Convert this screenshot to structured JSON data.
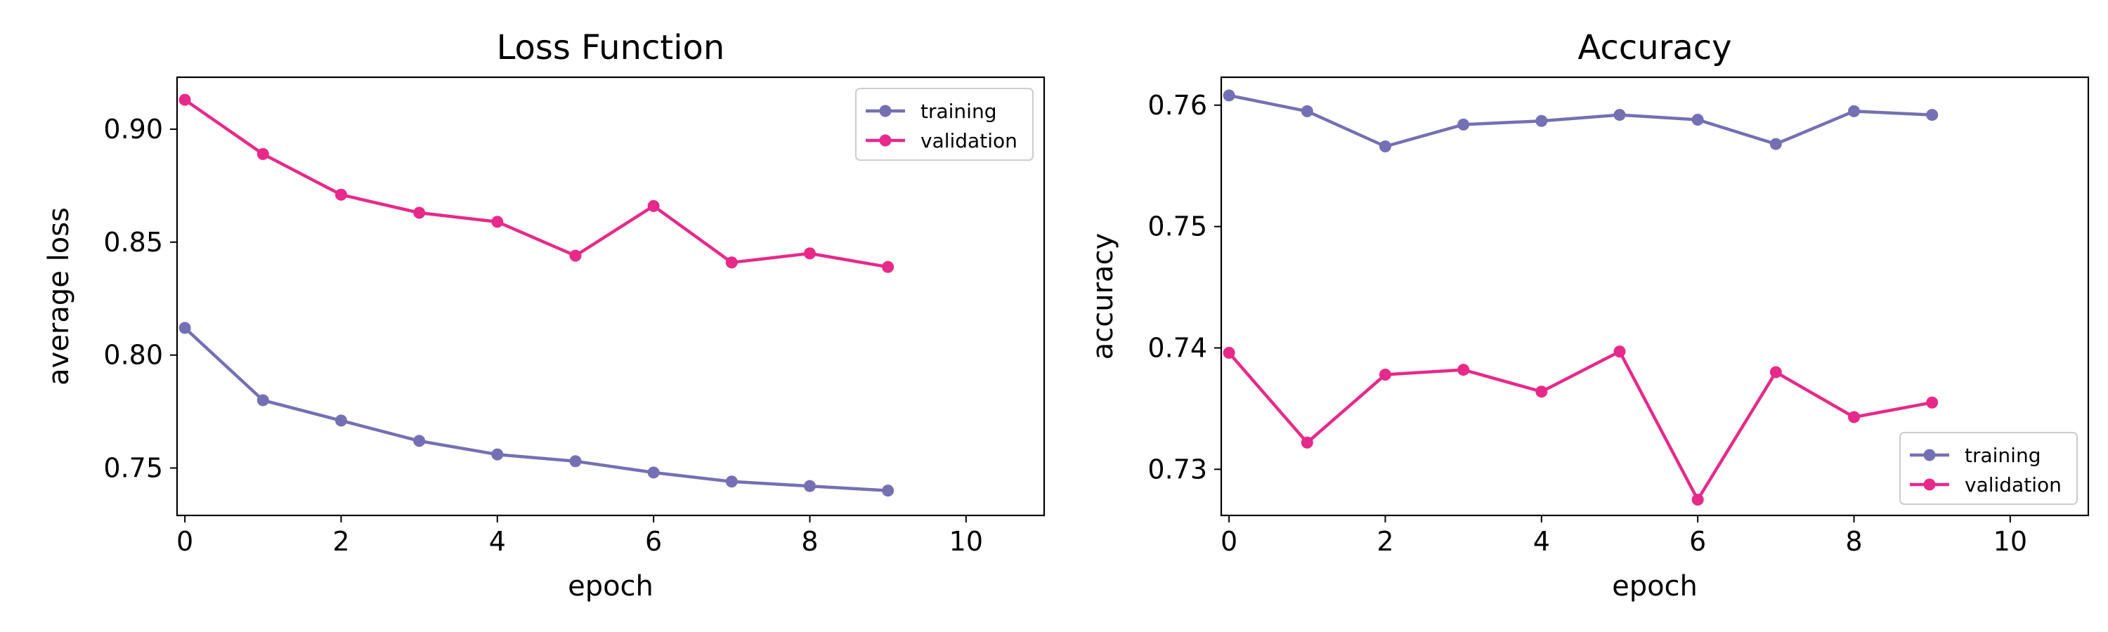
{
  "chart_data": [
    {
      "type": "line",
      "title": "Loss Function",
      "xlabel": "epoch",
      "ylabel": "average loss",
      "xlim": [
        -0.1,
        11
      ],
      "ylim": [
        0.729,
        0.923
      ],
      "xticks": [
        0,
        2,
        4,
        6,
        8,
        10
      ],
      "xtick_labels": [
        "0",
        "2",
        "4",
        "6",
        "8",
        "10"
      ],
      "yticks": [
        0.75,
        0.8,
        0.85,
        0.9
      ],
      "ytick_labels": [
        "0.75",
        "0.80",
        "0.85",
        "0.90"
      ],
      "grid": false,
      "legend_position": "top-right",
      "x": [
        0,
        1,
        2,
        3,
        4,
        5,
        6,
        7,
        8,
        9
      ],
      "series": [
        {
          "name": "training",
          "color": "#7570b3",
          "values": [
            0.812,
            0.78,
            0.771,
            0.762,
            0.756,
            0.753,
            0.748,
            0.744,
            0.742,
            0.74
          ]
        },
        {
          "name": "validation",
          "color": "#e7298a",
          "values": [
            0.913,
            0.889,
            0.871,
            0.863,
            0.859,
            0.844,
            0.866,
            0.841,
            0.845,
            0.839
          ]
        }
      ]
    },
    {
      "type": "line",
      "title": "Accuracy",
      "xlabel": "epoch",
      "ylabel": "accuracy",
      "xlim": [
        -0.1,
        11
      ],
      "ylim": [
        0.7262,
        0.7623
      ],
      "xticks": [
        0,
        2,
        4,
        6,
        8,
        10
      ],
      "xtick_labels": [
        "0",
        "2",
        "4",
        "6",
        "8",
        "10"
      ],
      "yticks": [
        0.73,
        0.74,
        0.75,
        0.76
      ],
      "ytick_labels": [
        "0.73",
        "0.74",
        "0.75",
        "0.76"
      ],
      "grid": false,
      "legend_position": "bottom-right",
      "x": [
        0,
        1,
        2,
        3,
        4,
        5,
        6,
        7,
        8,
        9
      ],
      "series": [
        {
          "name": "training",
          "color": "#7570b3",
          "values": [
            0.7608,
            0.7595,
            0.7566,
            0.7584,
            0.7587,
            0.7592,
            0.7588,
            0.7568,
            0.7595,
            0.7592
          ]
        },
        {
          "name": "validation",
          "color": "#e7298a",
          "values": [
            0.7396,
            0.7322,
            0.7378,
            0.7382,
            0.7364,
            0.7397,
            0.7275,
            0.738,
            0.7343,
            0.7355
          ]
        }
      ]
    }
  ]
}
